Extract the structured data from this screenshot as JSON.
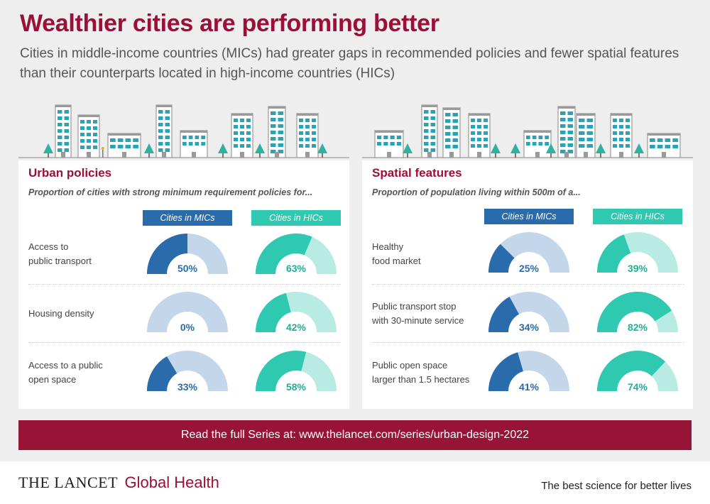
{
  "header": {
    "title": "Wealthier cities are performing better",
    "subtitle": "Cities in middle-income countries (MICs) had greater gaps in recommended policies and fewer spatial features than their counterparts located in high-income countries (HICs)"
  },
  "colors": {
    "title": "#9b1037",
    "mic": "#2a6bab",
    "mic_light": "#c4d6ea",
    "hic": "#2ec9b0",
    "hic_light": "#b8ebe2",
    "banner": "#981436",
    "background": "#eeeeee"
  },
  "panels": [
    {
      "title": "Urban policies",
      "description": "Proportion of cities with strong minimum requirement policies for...",
      "mic_header": "Cities in MICs",
      "hic_header": "Cities in HICs",
      "rows": [
        {
          "line1": "Access to",
          "line2": "public transport",
          "mic": 50,
          "mic_label": "50%",
          "hic": 63,
          "hic_label": "63%"
        },
        {
          "line1": "Housing density",
          "line2": "",
          "mic": 0,
          "mic_label": "0%",
          "hic": 42,
          "hic_label": "42%"
        },
        {
          "line1": "Access to a public",
          "line2": "open space",
          "mic": 33,
          "mic_label": "33%",
          "hic": 58,
          "hic_label": "58%"
        }
      ]
    },
    {
      "title": "Spatial features",
      "description": "Proportion of population living within 500m of a...",
      "mic_header": "Cities in MICs",
      "hic_header": "Cities in HICs",
      "rows": [
        {
          "line1": "Healthy",
          "line2": "food market",
          "mic": 25,
          "mic_label": "25%",
          "hic": 39,
          "hic_label": "39%"
        },
        {
          "line1": "Public transport stop",
          "line2": "with 30-minute service",
          "mic": 34,
          "mic_label": "34%",
          "hic": 82,
          "hic_label": "82%"
        },
        {
          "line1": "Public open space",
          "line2": "larger than 1.5 hectares",
          "mic": 41,
          "mic_label": "41%",
          "hic": 74,
          "hic_label": "74%"
        }
      ]
    }
  ],
  "banner": {
    "text": "Read the full Series at: www.thelancet.com/series/urban-design-2022"
  },
  "footer": {
    "brand": "THE LANCET",
    "journal": "Global Health",
    "tagline": "The best science for better lives"
  }
}
